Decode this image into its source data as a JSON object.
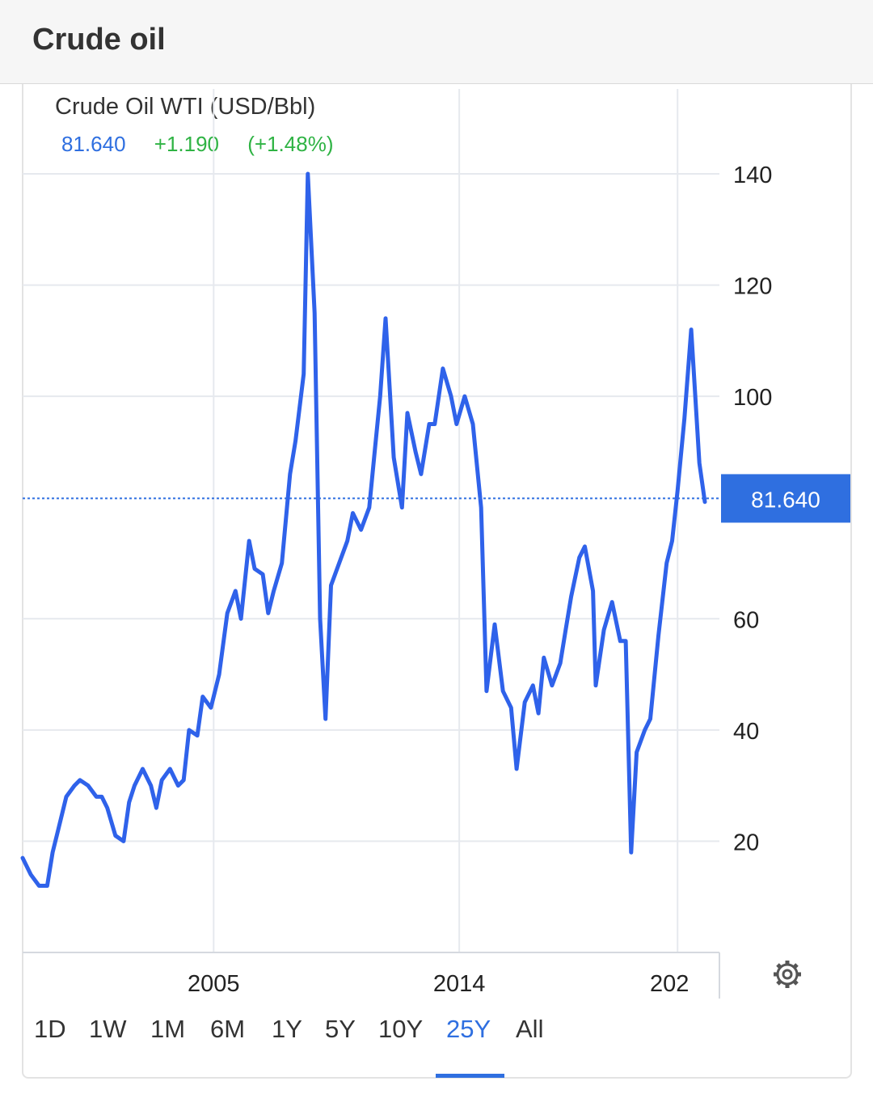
{
  "header": {
    "title": "Crude oil"
  },
  "instrument": {
    "name": "Crude Oil WTI (USD/Bbl)",
    "price": "81.640",
    "change": "+1.190",
    "change_pct": "(+1.48%)",
    "price_tag": "81.640"
  },
  "colors": {
    "line": "#2f62ea",
    "accent": "#2f6fe0",
    "positive": "#2fb344",
    "grid": "#e6e9ee"
  },
  "ranges": [
    "1D",
    "1W",
    "1M",
    "6M",
    "1Y",
    "5Y",
    "10Y",
    "25Y",
    "All"
  ],
  "active_range": "25Y",
  "settings_icon": "gear-icon",
  "chart_data": {
    "type": "line",
    "title": "Crude Oil WTI (USD/Bbl)",
    "xlabel": "",
    "ylabel": "",
    "y_ticks": [
      "140",
      "120",
      "100",
      "60",
      "40",
      "20"
    ],
    "x_ticks": [
      "2005",
      "2014",
      "202"
    ],
    "ylim": [
      0,
      140
    ],
    "xlim": [
      1998,
      2023
    ],
    "current_value": 81.64,
    "grid": true,
    "series": [
      {
        "x": [
          1998.0,
          1998.3,
          1998.6,
          1998.9,
          1999.1,
          1999.3,
          1999.6,
          1999.9,
          2000.1,
          2000.4,
          2000.7,
          2000.9,
          2001.1,
          2001.4,
          2001.7,
          2001.9,
          2002.1,
          2002.4,
          2002.7,
          2002.9,
          2003.1,
          2003.4,
          2003.7,
          2003.9,
          2004.1,
          2004.4,
          2004.6,
          2004.9,
          2005.0,
          2005.2,
          2005.5,
          2005.8,
          2006.0,
          2006.3,
          2006.5,
          2006.8,
          2007.0,
          2007.2,
          2007.5,
          2007.8,
          2008.0,
          2008.3,
          2008.45,
          2008.7,
          2008.9,
          2009.1,
          2009.3,
          2009.6,
          2009.9,
          2010.1,
          2010.4,
          2010.7,
          2010.9,
          2011.1,
          2011.3,
          2011.6,
          2011.9,
          2012.1,
          2012.4,
          2012.6,
          2012.9,
          2013.1,
          2013.4,
          2013.7,
          2013.9,
          2014.2,
          2014.5,
          2014.8,
          2015.0,
          2015.3,
          2015.6,
          2015.9,
          2016.1,
          2016.4,
          2016.7,
          2016.9,
          2017.1,
          2017.4,
          2017.7,
          2017.9,
          2018.1,
          2018.4,
          2018.6,
          2018.9,
          2019.0,
          2019.3,
          2019.6,
          2019.9,
          2020.1,
          2020.3,
          2020.5,
          2020.8,
          2021.0,
          2021.3,
          2021.6,
          2021.8,
          2022.0,
          2022.25,
          2022.5,
          2022.8,
          2023.0
        ],
        "values": [
          17,
          14,
          12,
          12,
          18,
          22,
          28,
          30,
          31,
          30,
          28,
          28,
          26,
          21,
          20,
          27,
          30,
          33,
          30,
          26,
          31,
          33,
          30,
          31,
          40,
          39,
          46,
          44,
          46,
          50,
          61,
          65,
          60,
          74,
          69,
          68,
          61,
          65,
          70,
          86,
          92,
          104,
          140,
          115,
          60,
          42,
          66,
          70,
          74,
          79,
          76,
          80,
          90,
          100,
          114,
          89,
          80,
          97,
          90,
          86,
          95,
          95,
          105,
          100,
          95,
          100,
          95,
          80,
          47,
          59,
          47,
          44,
          33,
          45,
          48,
          43,
          53,
          48,
          52,
          58,
          64,
          71,
          73,
          65,
          48,
          58,
          63,
          56,
          56,
          18,
          36,
          40,
          42,
          57,
          70,
          74,
          83,
          96,
          112,
          88,
          81
        ]
      }
    ]
  }
}
